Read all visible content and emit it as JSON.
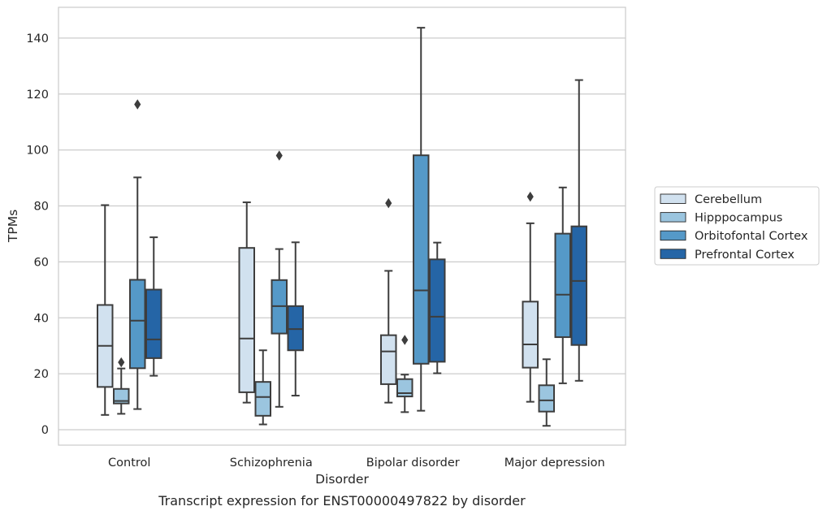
{
  "caption": "Transcript expression for ENST00000497822 by disorder",
  "chart_data": {
    "type": "box",
    "title": "",
    "xlabel": "Disorder",
    "ylabel": "TPMs",
    "ylim": [
      -5.5,
      151
    ],
    "yticks": [
      0,
      20,
      40,
      60,
      80,
      100,
      120,
      140
    ],
    "grid": "horizontal",
    "legend_position": "right",
    "categories": [
      "Control",
      "Schizophrenia",
      "Bipolar disorder",
      "Major depression"
    ],
    "series": [
      {
        "name": "Cerebellum",
        "color": "#d1e1ef",
        "boxes": [
          {
            "whisker_low": 5.3,
            "q1": 15.3,
            "median": 30.0,
            "q3": 44.6,
            "whisker_high": 80.3,
            "outliers": []
          },
          {
            "whisker_low": 9.7,
            "q1": 13.4,
            "median": 32.6,
            "q3": 65.0,
            "whisker_high": 81.3,
            "outliers": []
          },
          {
            "whisker_low": 9.7,
            "q1": 16.3,
            "median": 28.0,
            "q3": 33.8,
            "whisker_high": 56.8,
            "outliers": [
              81.0
            ]
          },
          {
            "whisker_low": 10.0,
            "q1": 22.2,
            "median": 30.5,
            "q3": 45.8,
            "whisker_high": 73.8,
            "outliers": [
              83.3
            ]
          }
        ]
      },
      {
        "name": "Hipppocampus",
        "color": "#9bc5df",
        "boxes": [
          {
            "whisker_low": 5.7,
            "q1": 9.4,
            "median": 10.3,
            "q3": 14.6,
            "whisker_high": 21.9,
            "outliers": [
              24.1
            ]
          },
          {
            "whisker_low": 1.9,
            "q1": 5.0,
            "median": 11.7,
            "q3": 17.1,
            "whisker_high": 28.4,
            "outliers": []
          },
          {
            "whisker_low": 6.3,
            "q1": 11.9,
            "median": 13.1,
            "q3": 18.1,
            "whisker_high": 19.7,
            "outliers": [
              32.1
            ]
          },
          {
            "whisker_low": 1.4,
            "q1": 6.5,
            "median": 10.5,
            "q3": 15.9,
            "whisker_high": 25.2,
            "outliers": []
          }
        ]
      },
      {
        "name": "Orbitofontal Cortex",
        "color": "#5599c8",
        "boxes": [
          {
            "whisker_low": 7.4,
            "q1": 22.0,
            "median": 39.0,
            "q3": 53.6,
            "whisker_high": 90.2,
            "outliers": [
              116.3
            ]
          },
          {
            "whisker_low": 8.2,
            "q1": 34.4,
            "median": 44.2,
            "q3": 53.5,
            "whisker_high": 64.6,
            "outliers": [
              98.0
            ]
          },
          {
            "whisker_low": 6.8,
            "q1": 23.6,
            "median": 49.8,
            "q3": 98.1,
            "whisker_high": 143.7,
            "outliers": []
          },
          {
            "whisker_low": 16.6,
            "q1": 33.1,
            "median": 48.3,
            "q3": 70.1,
            "whisker_high": 86.6,
            "outliers": []
          }
        ]
      },
      {
        "name": "Prefrontal Cortex",
        "color": "#2565a6",
        "boxes": [
          {
            "whisker_low": 19.3,
            "q1": 25.6,
            "median": 32.3,
            "q3": 50.1,
            "whisker_high": 68.8,
            "outliers": []
          },
          {
            "whisker_low": 12.2,
            "q1": 28.4,
            "median": 36.0,
            "q3": 44.2,
            "whisker_high": 67.0,
            "outliers": []
          },
          {
            "whisker_low": 20.2,
            "q1": 24.3,
            "median": 40.4,
            "q3": 60.9,
            "whisker_high": 66.9,
            "outliers": []
          },
          {
            "whisker_low": 17.5,
            "q1": 30.3,
            "median": 53.2,
            "q3": 72.7,
            "whisker_high": 125.0,
            "outliers": []
          }
        ]
      }
    ]
  }
}
